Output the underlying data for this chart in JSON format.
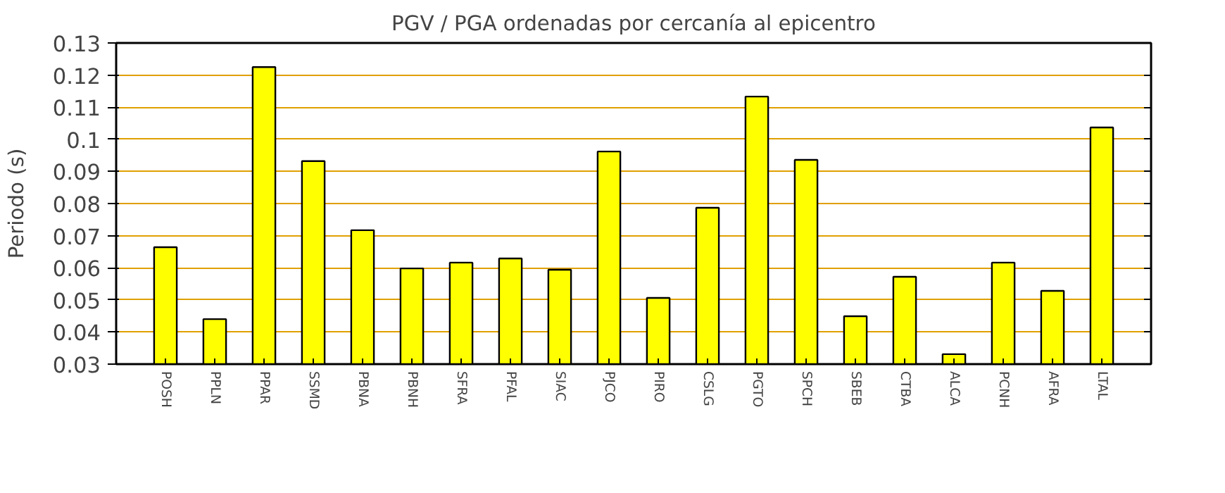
{
  "chart_data": {
    "type": "bar",
    "title": "PGV / PGA ordenadas por cercanía al epicentro",
    "ylabel": "Periodo (s)",
    "categories": [
      "POSH",
      "PPLN",
      "PPAR",
      "SSMD",
      "PBNA",
      "PBNH",
      "SFRA",
      "PFAL",
      "SIAC",
      "PJCO",
      "PIRO",
      "CSLG",
      "PGTO",
      "SPCH",
      "SBEB",
      "CTBA",
      "ALCA",
      "PCNH",
      "AFRA",
      "LTAL"
    ],
    "values": [
      0.0664,
      0.044,
      0.1225,
      0.0932,
      0.0717,
      0.0598,
      0.0616,
      0.0629,
      0.0594,
      0.0962,
      0.0506,
      0.0787,
      0.1133,
      0.0936,
      0.0449,
      0.0572,
      0.0331,
      0.0616,
      0.0528,
      0.1037
    ],
    "color": "#ffff00",
    "ylim": [
      0.03,
      0.13
    ],
    "yticks": [
      0.03,
      0.04,
      0.05,
      0.06,
      0.07,
      0.08,
      0.09,
      0.1,
      0.11,
      0.12,
      0.13
    ],
    "grid": "y"
  }
}
